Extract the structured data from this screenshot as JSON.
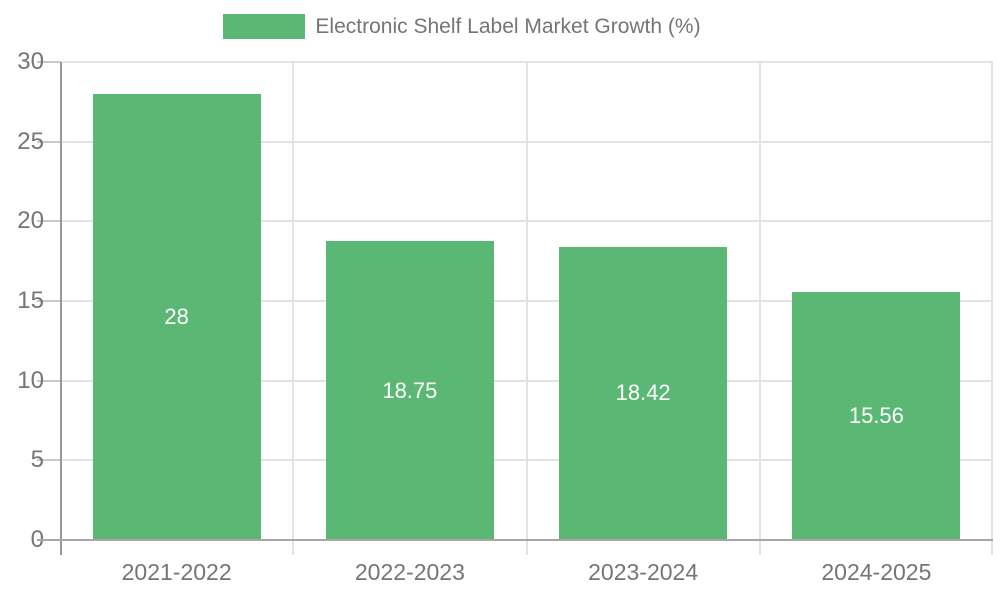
{
  "chart_data": {
    "type": "bar",
    "title": "Electronic Shelf Label Market Growth (%)",
    "categories": [
      "2021-2022",
      "2022-2023",
      "2023-2024",
      "2024-2025"
    ],
    "values": [
      28,
      18.75,
      18.42,
      15.56
    ],
    "value_labels": [
      "28",
      "18.75",
      "18.42",
      "15.56"
    ],
    "xlabel": "",
    "ylabel": "",
    "ylim": [
      0,
      30
    ],
    "yticks": [
      0,
      5,
      10,
      15,
      20,
      25,
      30
    ],
    "ytick_labels": [
      "0",
      "5",
      "10",
      "15",
      "20",
      "25",
      "30"
    ],
    "grid": "on",
    "legend_position": "top-center",
    "legend_entries": [
      "Electronic Shelf Label Market Growth (%)"
    ]
  },
  "colors": {
    "bar": "#5ab874",
    "text": "#757575",
    "value_label_text": "#ffffff",
    "grid": "#e3e3e3",
    "axis": "#9e9e9e",
    "background": "#ffffff"
  }
}
